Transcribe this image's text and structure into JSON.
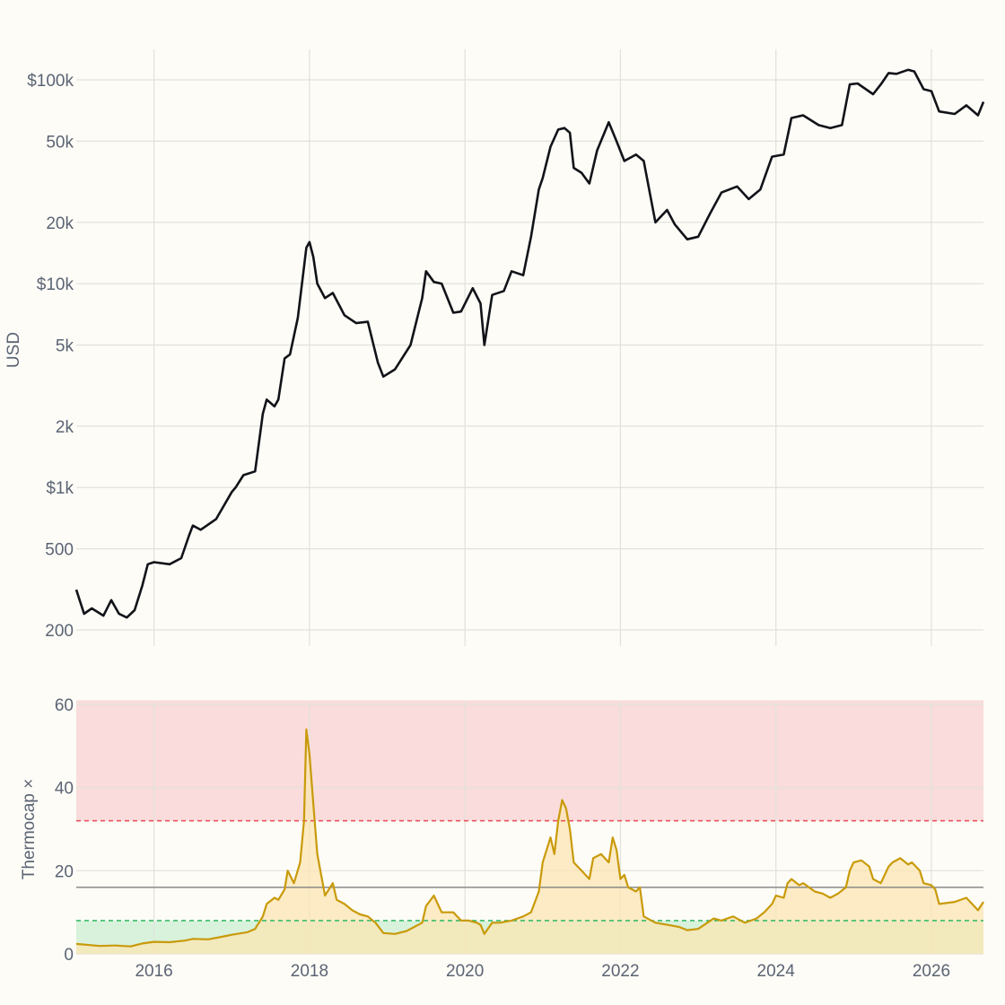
{
  "chart_data": [
    {
      "type": "line",
      "title": "",
      "ylabel": "USD",
      "yscale": "log",
      "ylim": [
        180,
        150000
      ],
      "xlim": [
        2015.0,
        2026.67
      ],
      "grid": true,
      "y_ticks": [
        {
          "value": 100000,
          "label": "$100k"
        },
        {
          "value": 50000,
          "label": "50k"
        },
        {
          "value": 20000,
          "label": "20k"
        },
        {
          "value": 10000,
          "label": "$10k"
        },
        {
          "value": 5000,
          "label": "5k"
        },
        {
          "value": 2000,
          "label": "2k"
        },
        {
          "value": 1000,
          "label": "$1k"
        },
        {
          "value": 500,
          "label": "500"
        },
        {
          "value": 200,
          "label": "200"
        }
      ],
      "x_gridlines": [
        2016,
        2018,
        2020,
        2022,
        2024,
        2026
      ],
      "line_color": "#111318",
      "series": [
        {
          "x": [
            2015.0,
            2015.1,
            2015.2,
            2015.35,
            2015.45,
            2015.55,
            2015.65,
            2015.75,
            2015.85,
            2015.92,
            2016.0,
            2016.2,
            2016.35,
            2016.45,
            2016.5,
            2016.6,
            2016.8,
            2017.0,
            2017.05,
            2017.15,
            2017.3,
            2017.4,
            2017.45,
            2017.55,
            2017.6,
            2017.68,
            2017.75,
            2017.85,
            2017.96,
            2018.0,
            2018.05,
            2018.1,
            2018.2,
            2018.3,
            2018.45,
            2018.6,
            2018.75,
            2018.88,
            2018.95,
            2019.1,
            2019.3,
            2019.45,
            2019.5,
            2019.6,
            2019.7,
            2019.85,
            2019.95,
            2020.1,
            2020.2,
            2020.25,
            2020.35,
            2020.5,
            2020.6,
            2020.75,
            2020.85,
            2020.95,
            2021.0,
            2021.1,
            2021.2,
            2021.28,
            2021.35,
            2021.4,
            2021.5,
            2021.6,
            2021.7,
            2021.85,
            2021.95,
            2022.05,
            2022.2,
            2022.3,
            2022.45,
            2022.6,
            2022.7,
            2022.86,
            2023.0,
            2023.15,
            2023.3,
            2023.5,
            2023.65,
            2023.8,
            2023.95,
            2024.1,
            2024.2,
            2024.35,
            2024.55,
            2024.7,
            2024.85,
            2024.95,
            2025.05,
            2025.25,
            2025.35,
            2025.45,
            2025.55,
            2025.7,
            2025.78,
            2025.9,
            2026.0,
            2026.1,
            2026.3,
            2026.45,
            2026.6,
            2026.67
          ],
          "values": [
            315,
            240,
            255,
            235,
            280,
            240,
            230,
            250,
            330,
            420,
            430,
            420,
            450,
            580,
            650,
            620,
            700,
            950,
            1000,
            1150,
            1200,
            2300,
            2700,
            2500,
            2700,
            4300,
            4500,
            6800,
            15000,
            16000,
            13500,
            10000,
            8500,
            9000,
            7000,
            6400,
            6500,
            4100,
            3500,
            3800,
            5000,
            8500,
            11500,
            10200,
            10000,
            7200,
            7300,
            9500,
            8000,
            5000,
            8800,
            9200,
            11500,
            11000,
            17000,
            29000,
            33000,
            47000,
            57000,
            58000,
            55000,
            37000,
            35000,
            31000,
            45000,
            62000,
            50000,
            40000,
            43000,
            40000,
            20000,
            23000,
            19500,
            16500,
            17000,
            22000,
            28000,
            30000,
            26000,
            29000,
            42000,
            43000,
            65000,
            67000,
            60000,
            58000,
            60000,
            95000,
            96000,
            85000,
            95000,
            108000,
            107000,
            112000,
            110000,
            90000,
            88000,
            70000,
            68000,
            75000,
            67000,
            78000
          ]
        }
      ]
    },
    {
      "type": "area",
      "title": "",
      "ylabel": "Thermocap ×",
      "ylim": [
        0,
        61
      ],
      "xlim": [
        2015.0,
        2026.67
      ],
      "grid": true,
      "y_ticks": [
        0,
        20,
        40,
        60
      ],
      "x_ticks": [
        "2016",
        "2018",
        "2020",
        "2022",
        "2024",
        "2026"
      ],
      "x_tick_values": [
        2016,
        2018,
        2020,
        2022,
        2024,
        2026
      ],
      "zones": [
        {
          "from": 32,
          "to": 61,
          "color": "#f9dcdb"
        },
        {
          "from": 0,
          "to": 8,
          "color": "#d8f2dc"
        }
      ],
      "thresholds": [
        {
          "value": 32,
          "color": "#e9545d",
          "style": "dashed"
        },
        {
          "value": 16,
          "color": "#8a8a88",
          "style": "solid"
        },
        {
          "value": 8,
          "color": "#3dbb68",
          "style": "dashed"
        }
      ],
      "line_color": "#c99a0a",
      "fill_color": "#fbe5b3",
      "series": [
        {
          "x": [
            2015.0,
            2015.3,
            2015.5,
            2015.7,
            2015.85,
            2016.0,
            2016.2,
            2016.4,
            2016.5,
            2016.7,
            2016.9,
            2017.0,
            2017.2,
            2017.3,
            2017.4,
            2017.45,
            2017.55,
            2017.6,
            2017.68,
            2017.72,
            2017.8,
            2017.88,
            2017.93,
            2017.96,
            2018.0,
            2018.05,
            2018.1,
            2018.15,
            2018.2,
            2018.3,
            2018.35,
            2018.45,
            2018.55,
            2018.65,
            2018.75,
            2018.85,
            2018.95,
            2019.1,
            2019.25,
            2019.45,
            2019.5,
            2019.6,
            2019.7,
            2019.85,
            2019.95,
            2020.05,
            2020.15,
            2020.2,
            2020.25,
            2020.35,
            2020.45,
            2020.6,
            2020.75,
            2020.85,
            2020.95,
            2021.0,
            2021.1,
            2021.15,
            2021.2,
            2021.25,
            2021.3,
            2021.35,
            2021.4,
            2021.5,
            2021.6,
            2021.65,
            2021.75,
            2021.85,
            2021.9,
            2021.95,
            2022.0,
            2022.05,
            2022.1,
            2022.2,
            2022.25,
            2022.3,
            2022.45,
            2022.6,
            2022.75,
            2022.86,
            2023.0,
            2023.2,
            2023.3,
            2023.45,
            2023.6,
            2023.75,
            2023.85,
            2023.95,
            2024.0,
            2024.1,
            2024.15,
            2024.2,
            2024.3,
            2024.35,
            2024.5,
            2024.6,
            2024.7,
            2024.8,
            2024.9,
            2024.95,
            2025.0,
            2025.1,
            2025.2,
            2025.25,
            2025.35,
            2025.45,
            2025.5,
            2025.6,
            2025.7,
            2025.75,
            2025.85,
            2025.9,
            2026.0,
            2026.05,
            2026.1,
            2026.3,
            2026.45,
            2026.6,
            2026.67
          ],
          "values": [
            2.4,
            1.9,
            2.0,
            1.8,
            2.5,
            2.9,
            2.8,
            3.2,
            3.6,
            3.5,
            4.2,
            4.6,
            5.2,
            6.0,
            9.0,
            12.0,
            13.5,
            13.0,
            15.5,
            20.0,
            17.0,
            22.0,
            32.0,
            54.0,
            48.0,
            36.0,
            24.0,
            19.0,
            14.0,
            17.0,
            13.0,
            12.0,
            10.5,
            9.5,
            9.0,
            7.5,
            5.0,
            4.8,
            5.5,
            7.5,
            11.5,
            14.0,
            10.0,
            10.0,
            8.0,
            8.0,
            7.5,
            7.0,
            4.8,
            7.5,
            7.5,
            8.0,
            9.0,
            10.0,
            15.0,
            22.0,
            28.0,
            24.0,
            32.0,
            37.0,
            35.0,
            30.0,
            22.0,
            20.0,
            18.0,
            23.0,
            24.0,
            22.0,
            28.0,
            25.0,
            18.0,
            19.0,
            16.0,
            15.0,
            16.0,
            9.0,
            7.5,
            7.0,
            6.5,
            5.7,
            6.0,
            8.5,
            8.0,
            9.0,
            7.5,
            8.5,
            10.0,
            12.0,
            14.0,
            13.5,
            17.0,
            18.0,
            16.5,
            17.0,
            15.0,
            14.5,
            13.5,
            14.5,
            16.0,
            20.0,
            22.0,
            22.5,
            21.0,
            18.0,
            17.0,
            21.0,
            22.0,
            23.0,
            21.5,
            22.0,
            20.0,
            17.0,
            16.5,
            15.5,
            12.0,
            12.5,
            13.5,
            10.5,
            12.5
          ]
        }
      ]
    }
  ]
}
